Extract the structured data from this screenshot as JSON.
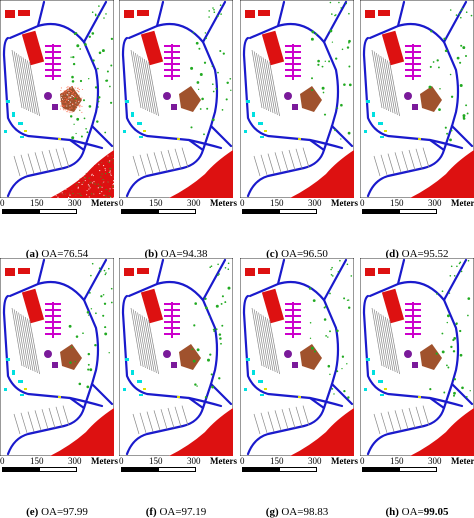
{
  "scale": {
    "ticks": [
      "0",
      "150",
      "300"
    ],
    "unit": "Meters"
  },
  "panels": [
    {
      "letter": "(a)",
      "metric": "OA=",
      "value": "76.54",
      "value_bold": false,
      "noise": "heavy"
    },
    {
      "letter": "(b)",
      "metric": "OA=",
      "value": "94.38",
      "value_bold": false,
      "noise": "light"
    },
    {
      "letter": "(c)",
      "metric": "OA=",
      "value": "96.50",
      "value_bold": false,
      "noise": "light"
    },
    {
      "letter": "(d)",
      "metric": "OA=",
      "value": "95.52",
      "value_bold": false,
      "noise": "light"
    },
    {
      "letter": "(e)",
      "metric": "OA=",
      "value": "97.99",
      "value_bold": false,
      "noise": "light"
    },
    {
      "letter": "(f)",
      "metric": "OA=",
      "value": "97.19",
      "value_bold": false,
      "noise": "light"
    },
    {
      "letter": "(g)",
      "metric": "OA=",
      "value": "98.83",
      "value_bold": false,
      "noise": "light"
    },
    {
      "letter": "(h)",
      "metric": "OA=",
      "value": "99.05",
      "value_bold": true,
      "noise": "light"
    }
  ],
  "class_colors": {
    "buildings": "#dd1111",
    "shadows": "#cc00cc",
    "soil": "#a0522d",
    "roads": "#1a1acc",
    "trees": "#22aa22",
    "grass": "#00e0e0",
    "bricks": "#e0e000",
    "gravel": "#888888",
    "asphalt": "#bbbbbb",
    "purple_roof": "#7a1a9a"
  }
}
